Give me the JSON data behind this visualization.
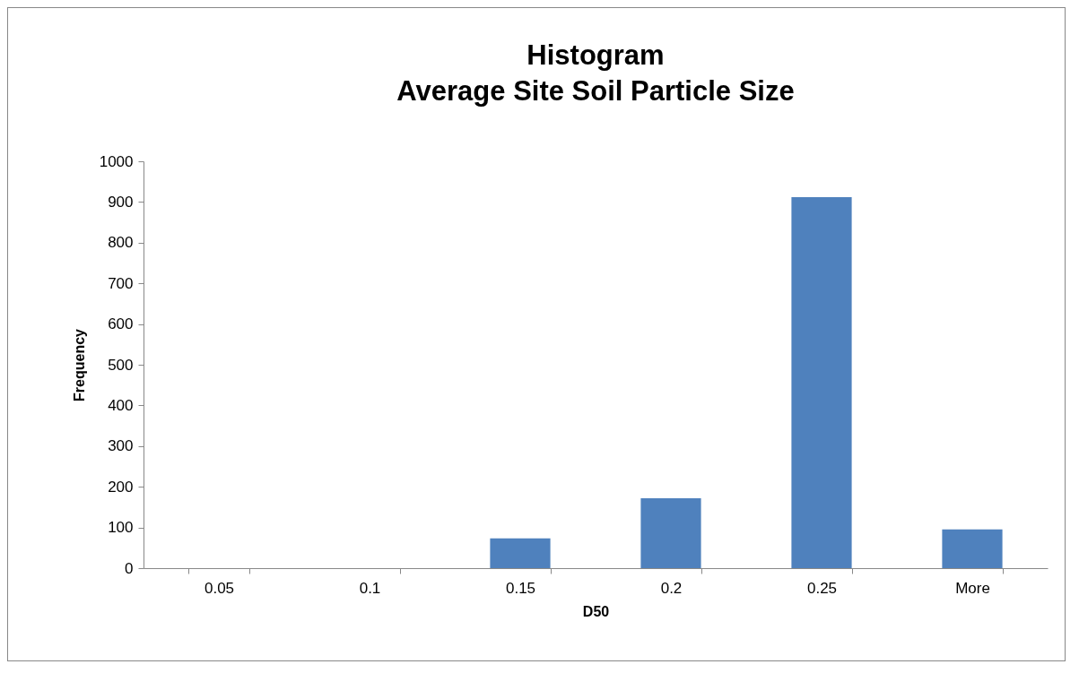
{
  "chart_data": {
    "type": "bar",
    "title": "Histogram\nAverage Site Soil Particle Size",
    "xlabel": "D50",
    "ylabel": "Frequency",
    "categories": [
      "0.05",
      "0.1",
      "0.15",
      "0.2",
      "0.25",
      "More"
    ],
    "values": [
      0,
      0,
      73,
      172,
      912,
      95
    ],
    "color": "#4f81bd",
    "ylim": [
      0,
      1000
    ],
    "yticks": [
      0,
      100,
      200,
      300,
      400,
      500,
      600,
      700,
      800,
      900,
      1000
    ],
    "grid": false,
    "legend": false
  }
}
